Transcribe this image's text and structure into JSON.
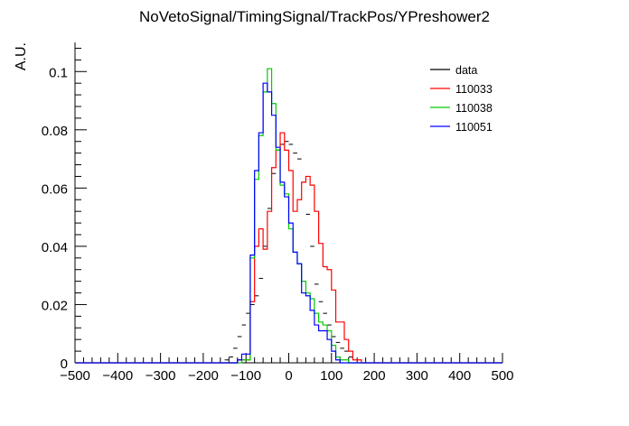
{
  "chart_data": {
    "type": "histogram",
    "title": "NoVetoSignal/TimingSignal/TrackPos/YPreshower2",
    "ylabel": "A.U.",
    "xlabel": "",
    "xlim": [
      -500,
      500
    ],
    "ylim": [
      0,
      0.11
    ],
    "xticks": [
      -500,
      -400,
      -300,
      -200,
      -100,
      0,
      100,
      200,
      300,
      400,
      500
    ],
    "xtick_labels": [
      "−500",
      "−400",
      "−300",
      "−200",
      "−100",
      "0",
      "100",
      "200",
      "300",
      "400",
      "500"
    ],
    "yticks": [
      0,
      0.02,
      0.04,
      0.06,
      0.08,
      0.1
    ],
    "ytick_labels": [
      "0",
      "0.02",
      "0.04",
      "0.06",
      "0.08",
      "0.1"
    ],
    "bin_width": 10,
    "bin_edges_start": -150,
    "legend_position": "top-right",
    "colors": {
      "data": "#000000",
      "110033": "#ff0000",
      "110038": "#00cc00",
      "110051": "#0000ff"
    },
    "series": [
      {
        "name": "data",
        "style": "points",
        "x": [
          -145,
          -135,
          -125,
          -115,
          -105,
          -95,
          -85,
          -75,
          -65,
          -55,
          -45,
          -35,
          -25,
          -15,
          -5,
          5,
          15,
          25,
          35,
          45,
          55,
          65,
          75,
          85,
          95,
          105,
          115,
          125,
          135,
          145
        ],
        "values": [
          0.001,
          0.002,
          0.005,
          0.009,
          0.013,
          0.017,
          0.02,
          0.023,
          0.029,
          0.04,
          0.053,
          0.065,
          0.073,
          0.075,
          0.076,
          0.075,
          0.072,
          0.07,
          0.062,
          0.051,
          0.04,
          0.027,
          0.021,
          0.017,
          0.013,
          0.009,
          0.007,
          0.005,
          0.004,
          0.002
        ]
      },
      {
        "name": "110033",
        "style": "step",
        "values": [
          0.0,
          0.0,
          0.0,
          0.001,
          0.001,
          0.001,
          0.021,
          0.04,
          0.046,
          0.039,
          0.052,
          0.067,
          0.073,
          0.079,
          0.073,
          0.066,
          0.052,
          0.056,
          0.062,
          0.064,
          0.061,
          0.052,
          0.041,
          0.033,
          0.032,
          0.025,
          0.014,
          0.014,
          0.008,
          0.004,
          0.001,
          0.001,
          0.0
        ]
      },
      {
        "name": "110038",
        "style": "step",
        "values": [
          0.0,
          0.0,
          0.0,
          0.0,
          0.001,
          0.001,
          0.036,
          0.063,
          0.078,
          0.093,
          0.101,
          0.089,
          0.073,
          0.061,
          0.058,
          0.046,
          0.038,
          0.034,
          0.028,
          0.024,
          0.022,
          0.017,
          0.014,
          0.013,
          0.011,
          0.006,
          0.002,
          0.001,
          0.001,
          0.0,
          0.0,
          0.0,
          0.0
        ]
      },
      {
        "name": "110051",
        "style": "step",
        "values": [
          0.0,
          0.0,
          0.0,
          0.001,
          0.003,
          0.003,
          0.037,
          0.066,
          0.079,
          0.096,
          0.093,
          0.085,
          0.074,
          0.062,
          0.057,
          0.048,
          0.038,
          0.034,
          0.024,
          0.023,
          0.018,
          0.013,
          0.011,
          0.011,
          0.008,
          0.004,
          0.001,
          0.0,
          0.0,
          0.0,
          0.0,
          0.0,
          0.0
        ]
      }
    ]
  }
}
